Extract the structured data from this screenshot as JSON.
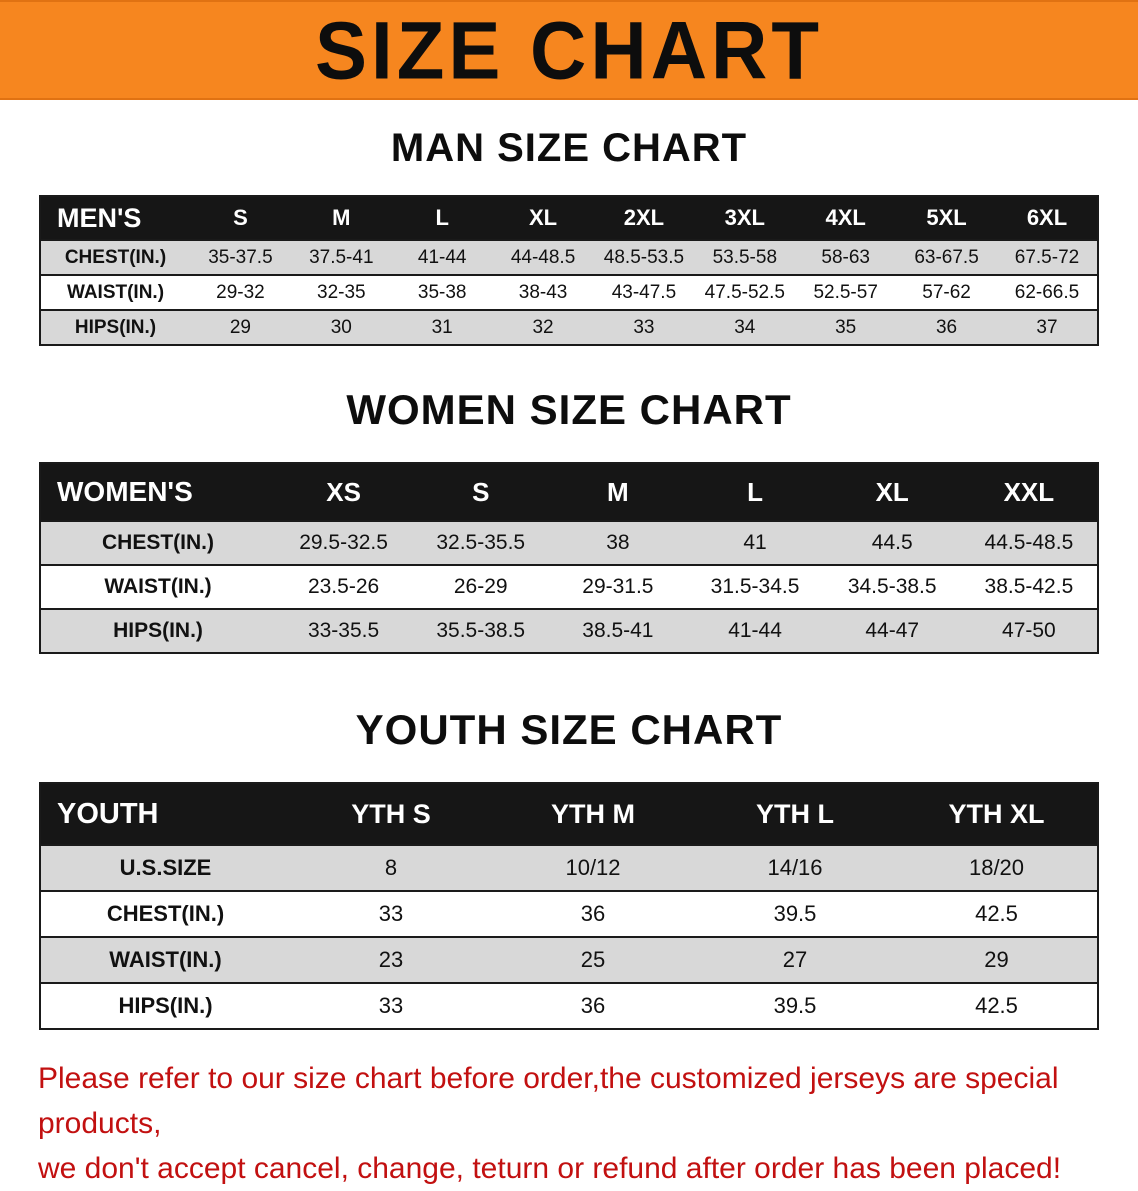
{
  "banner": {
    "title": "SIZE CHART"
  },
  "colors": {
    "banner_orange": "#f6861f",
    "table_header_black": "#161616",
    "row_gray": "#d8d8d8",
    "notice_red": "#c21010"
  },
  "men": {
    "heading": "MAN SIZE CHART",
    "table": {
      "header": [
        "MEN'S",
        "S",
        "M",
        "L",
        "XL",
        "2XL",
        "3XL",
        "4XL",
        "5XL",
        "6XL"
      ],
      "rows": [
        {
          "label": "CHEST(IN.)",
          "values": [
            "35-37.5",
            "37.5-41",
            "41-44",
            "44-48.5",
            "48.5-53.5",
            "53.5-58",
            "58-63",
            "63-67.5",
            "67.5-72"
          ]
        },
        {
          "label": "WAIST(IN.)",
          "values": [
            "29-32",
            "32-35",
            "35-38",
            "38-43",
            "43-47.5",
            "47.5-52.5",
            "52.5-57",
            "57-62",
            "62-66.5"
          ]
        },
        {
          "label": "HIPS(IN.)",
          "values": [
            "29",
            "30",
            "31",
            "32",
            "33",
            "34",
            "35",
            "36",
            "37"
          ]
        }
      ]
    }
  },
  "women": {
    "heading": "WOMEN SIZE CHART",
    "table": {
      "header": [
        "WOMEN'S",
        "XS",
        "S",
        "M",
        "L",
        "XL",
        "XXL"
      ],
      "rows": [
        {
          "label": "CHEST(IN.)",
          "values": [
            "29.5-32.5",
            "32.5-35.5",
            "38",
            "41",
            "44.5",
            "44.5-48.5"
          ]
        },
        {
          "label": "WAIST(IN.)",
          "values": [
            "23.5-26",
            "26-29",
            "29-31.5",
            "31.5-34.5",
            "34.5-38.5",
            "38.5-42.5"
          ]
        },
        {
          "label": "HIPS(IN.)",
          "values": [
            "33-35.5",
            "35.5-38.5",
            "38.5-41",
            "41-44",
            "44-47",
            "47-50"
          ]
        }
      ]
    }
  },
  "youth": {
    "heading": "YOUTH SIZE CHART",
    "table": {
      "header": [
        "YOUTH",
        "YTH S",
        "YTH M",
        "YTH L",
        "YTH XL"
      ],
      "rows": [
        {
          "label": "U.S.SIZE",
          "values": [
            "8",
            "10/12",
            "14/16",
            "18/20"
          ]
        },
        {
          "label": "CHEST(IN.)",
          "values": [
            "33",
            "36",
            "39.5",
            "42.5"
          ]
        },
        {
          "label": "WAIST(IN.)",
          "values": [
            "23",
            "25",
            "27",
            "29"
          ]
        },
        {
          "label": "HIPS(IN.)",
          "values": [
            "33",
            "36",
            "39.5",
            "42.5"
          ]
        }
      ]
    }
  },
  "footer": {
    "line1": "Please refer to our size chart before order,the customized jerseys are special products,",
    "line2": "we don't accept cancel, change, teturn or refund after order has been placed!"
  }
}
